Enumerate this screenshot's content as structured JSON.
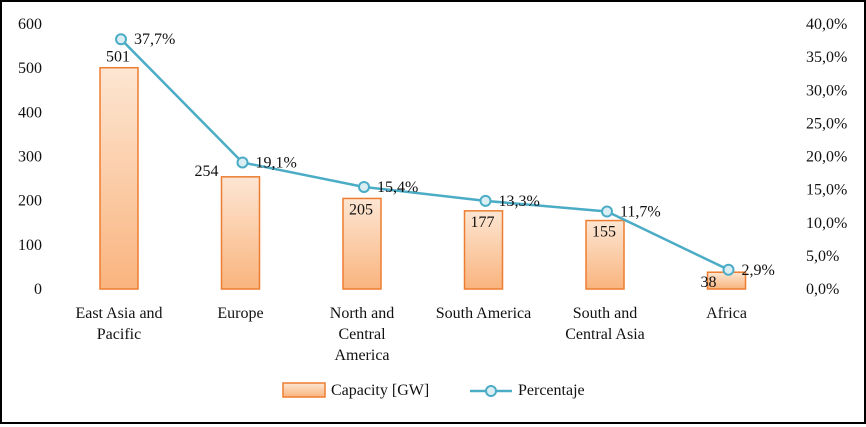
{
  "chart_data": {
    "type": "bar",
    "categories": [
      [
        "East Asia and",
        "Pacific"
      ],
      [
        "Europe"
      ],
      [
        "North and",
        "Central",
        "America"
      ],
      [
        "South America"
      ],
      [
        "South and",
        "Central Asia"
      ],
      [
        "Africa"
      ]
    ],
    "series": [
      {
        "name": "Capacity [GW]",
        "type": "bar",
        "axis": "left",
        "values": [
          501,
          254,
          205,
          177,
          155,
          38
        ],
        "labels": [
          "501",
          "254",
          "205",
          "177",
          "155",
          "38"
        ]
      },
      {
        "name": "Percentaje",
        "type": "line",
        "axis": "right",
        "values": [
          37.7,
          19.1,
          15.4,
          13.3,
          11.7,
          2.9
        ],
        "labels": [
          "37,7%",
          "19,1%",
          "15,4%",
          "13,3%",
          "11,7%",
          "2,9%"
        ]
      }
    ],
    "left_axis": {
      "ylim": [
        0,
        600
      ],
      "ticks": [
        "0",
        "100",
        "200",
        "300",
        "400",
        "500",
        "600"
      ]
    },
    "right_axis": {
      "ylim": [
        0,
        40
      ],
      "ticks": [
        "0,0%",
        "5,0%",
        "10,0%",
        "15,0%",
        "20,0%",
        "25,0%",
        "30,0%",
        "35,0%",
        "40,0%"
      ]
    },
    "legend": {
      "position": "bottom",
      "items": [
        "Capacity [GW]",
        "Percentaje"
      ]
    },
    "colors": {
      "bar_fill_top": "#fde6d3",
      "bar_fill_bottom": "#f9b47e",
      "bar_stroke": "#ed7d31",
      "line": "#4bacc6",
      "marker_fill": "#dbeef4"
    },
    "grid": false
  }
}
